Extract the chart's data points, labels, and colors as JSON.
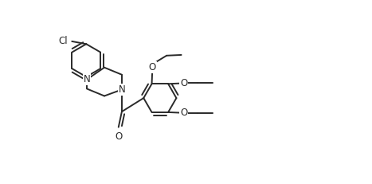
{
  "bg_color": "#ffffff",
  "line_color": "#2a2a2a",
  "line_width": 1.4,
  "font_size": 8.5,
  "figsize": [
    4.67,
    2.31
  ],
  "dpi": 100,
  "xlim": [
    -0.5,
    9.5
  ],
  "ylim": [
    -2.5,
    3.0
  ]
}
